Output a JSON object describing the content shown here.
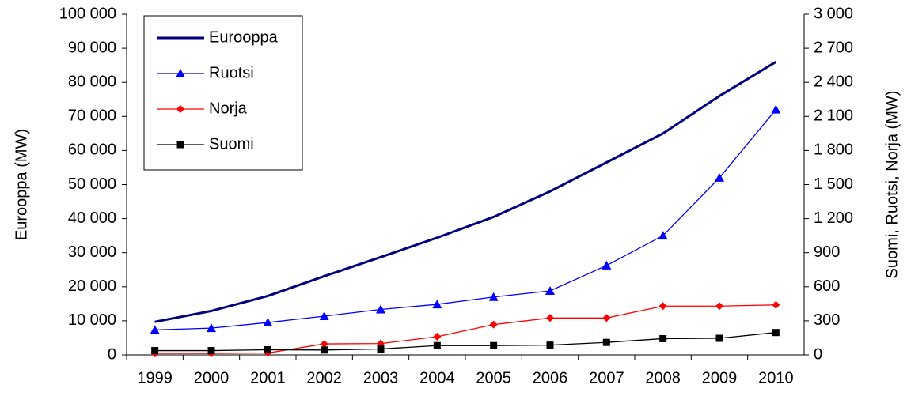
{
  "chart_data": {
    "type": "line",
    "categories": [
      "1999",
      "2000",
      "2001",
      "2002",
      "2003",
      "2004",
      "2005",
      "2006",
      "2007",
      "2008",
      "2009",
      "2010"
    ],
    "y_label": "Eurooppa (MW)",
    "y2_label": "Suomi, Ruotsi, Norja (MW)",
    "ylim": [
      0,
      100000
    ],
    "yticks": [
      0,
      {
        "value": 10000,
        "label": "10 000"
      },
      {
        "value": 20000,
        "label": "20 000"
      },
      {
        "value": 30000,
        "label": "30 000"
      },
      {
        "value": 40000,
        "label": "40 000"
      },
      {
        "value": 50000,
        "label": "50 000"
      },
      {
        "value": 60000,
        "label": "60 000"
      },
      {
        "value": 70000,
        "label": "70 000"
      },
      {
        "value": 80000,
        "label": "80 000"
      },
      {
        "value": 90000,
        "label": "90 000"
      },
      {
        "value": 100000,
        "label": "100 000"
      }
    ],
    "y2lim": [
      0,
      3000
    ],
    "y2ticks": [
      0,
      300,
      600,
      900,
      {
        "value": 1200,
        "label": "1 200"
      },
      {
        "value": 1500,
        "label": "1 500"
      },
      {
        "value": 1800,
        "label": "1 800"
      },
      {
        "value": 2100,
        "label": "2 100"
      },
      {
        "value": 2400,
        "label": "2 400"
      },
      {
        "value": 2700,
        "label": "2 700"
      },
      {
        "value": 3000,
        "label": "3 000"
      }
    ],
    "legend": "upper left",
    "series": [
      {
        "name": "Eurooppa",
        "color": "#000080",
        "marker": "none",
        "values": [
          9700,
          12900,
          17300,
          23100,
          28700,
          34400,
          40500,
          48000,
          56500,
          65000,
          76000,
          86000
        ]
      },
      {
        "name": "Ruotsi",
        "color": "#0000ff",
        "marker": "triangle",
        "axis": "y2",
        "values": [
          220,
          236,
          285,
          341,
          400,
          445,
          510,
          564,
          787,
          1050,
          1560,
          2160
        ]
      },
      {
        "name": "Norja",
        "color": "#ff0000",
        "marker": "diamond",
        "axis": "y2",
        "values": [
          13,
          13,
          17,
          97,
          100,
          160,
          267,
          325,
          325,
          430,
          430,
          440
        ]
      },
      {
        "name": "Suomi",
        "color": "#000000",
        "marker": "square",
        "axis": "y2",
        "values": [
          38,
          38,
          45,
          43,
          52,
          82,
          82,
          86,
          110,
          143,
          146,
          197
        ]
      }
    ]
  }
}
